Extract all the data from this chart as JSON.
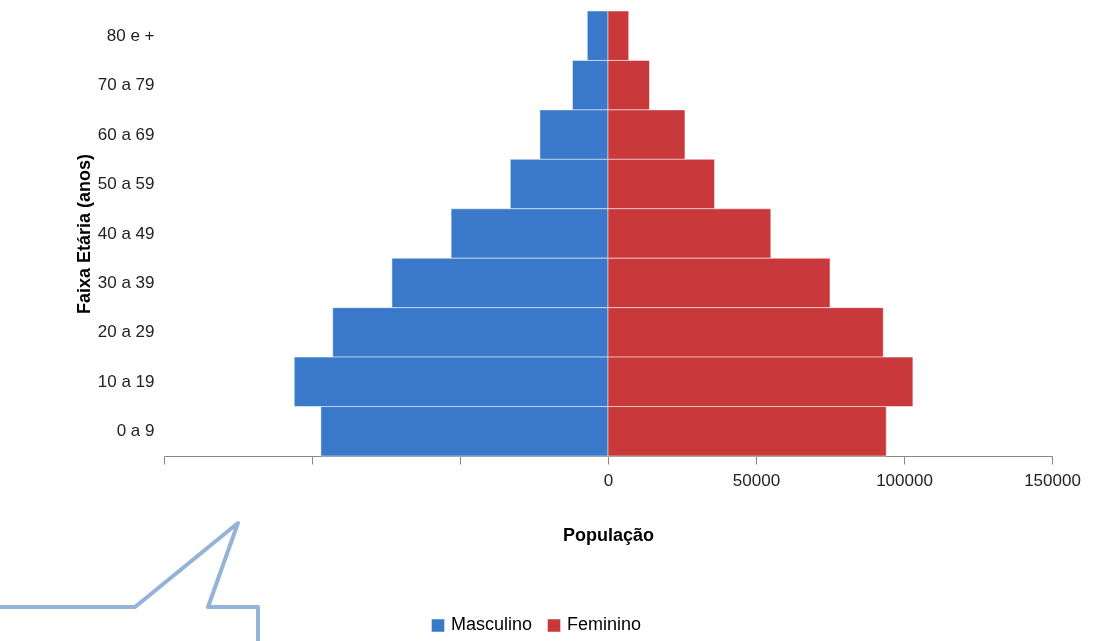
{
  "chart_data": {
    "type": "bar",
    "orientation": "horizontal",
    "stacked": true,
    "categories": [
      "80 e +",
      "70 a 79",
      "60 a 69",
      "50 a 59",
      "40 a 49",
      "30 a 39",
      "20 a 29",
      "10 a 19",
      "0 a 9"
    ],
    "series": [
      {
        "name": "Masculino",
        "color": "#3a78c9",
        "values": [
          -7000,
          -12000,
          -23000,
          -33000,
          -53000,
          -73000,
          -93000,
          -106000,
          -97000
        ]
      },
      {
        "name": "Feminino",
        "color": "#c9383a",
        "values": [
          7000,
          14000,
          26000,
          36000,
          55000,
          75000,
          93000,
          103000,
          94000
        ]
      }
    ],
    "xlim": [
      -150000,
      150000
    ],
    "xticks": [
      {
        "value": -150000,
        "label": null
      },
      {
        "value": -100000,
        "label": null
      },
      {
        "value": -50000,
        "label": null
      },
      0,
      50000,
      100000,
      150000
    ],
    "xlabel": "População",
    "ylabel": "Faixa Etária (anos)",
    "legend": "bottom",
    "grid": false
  }
}
